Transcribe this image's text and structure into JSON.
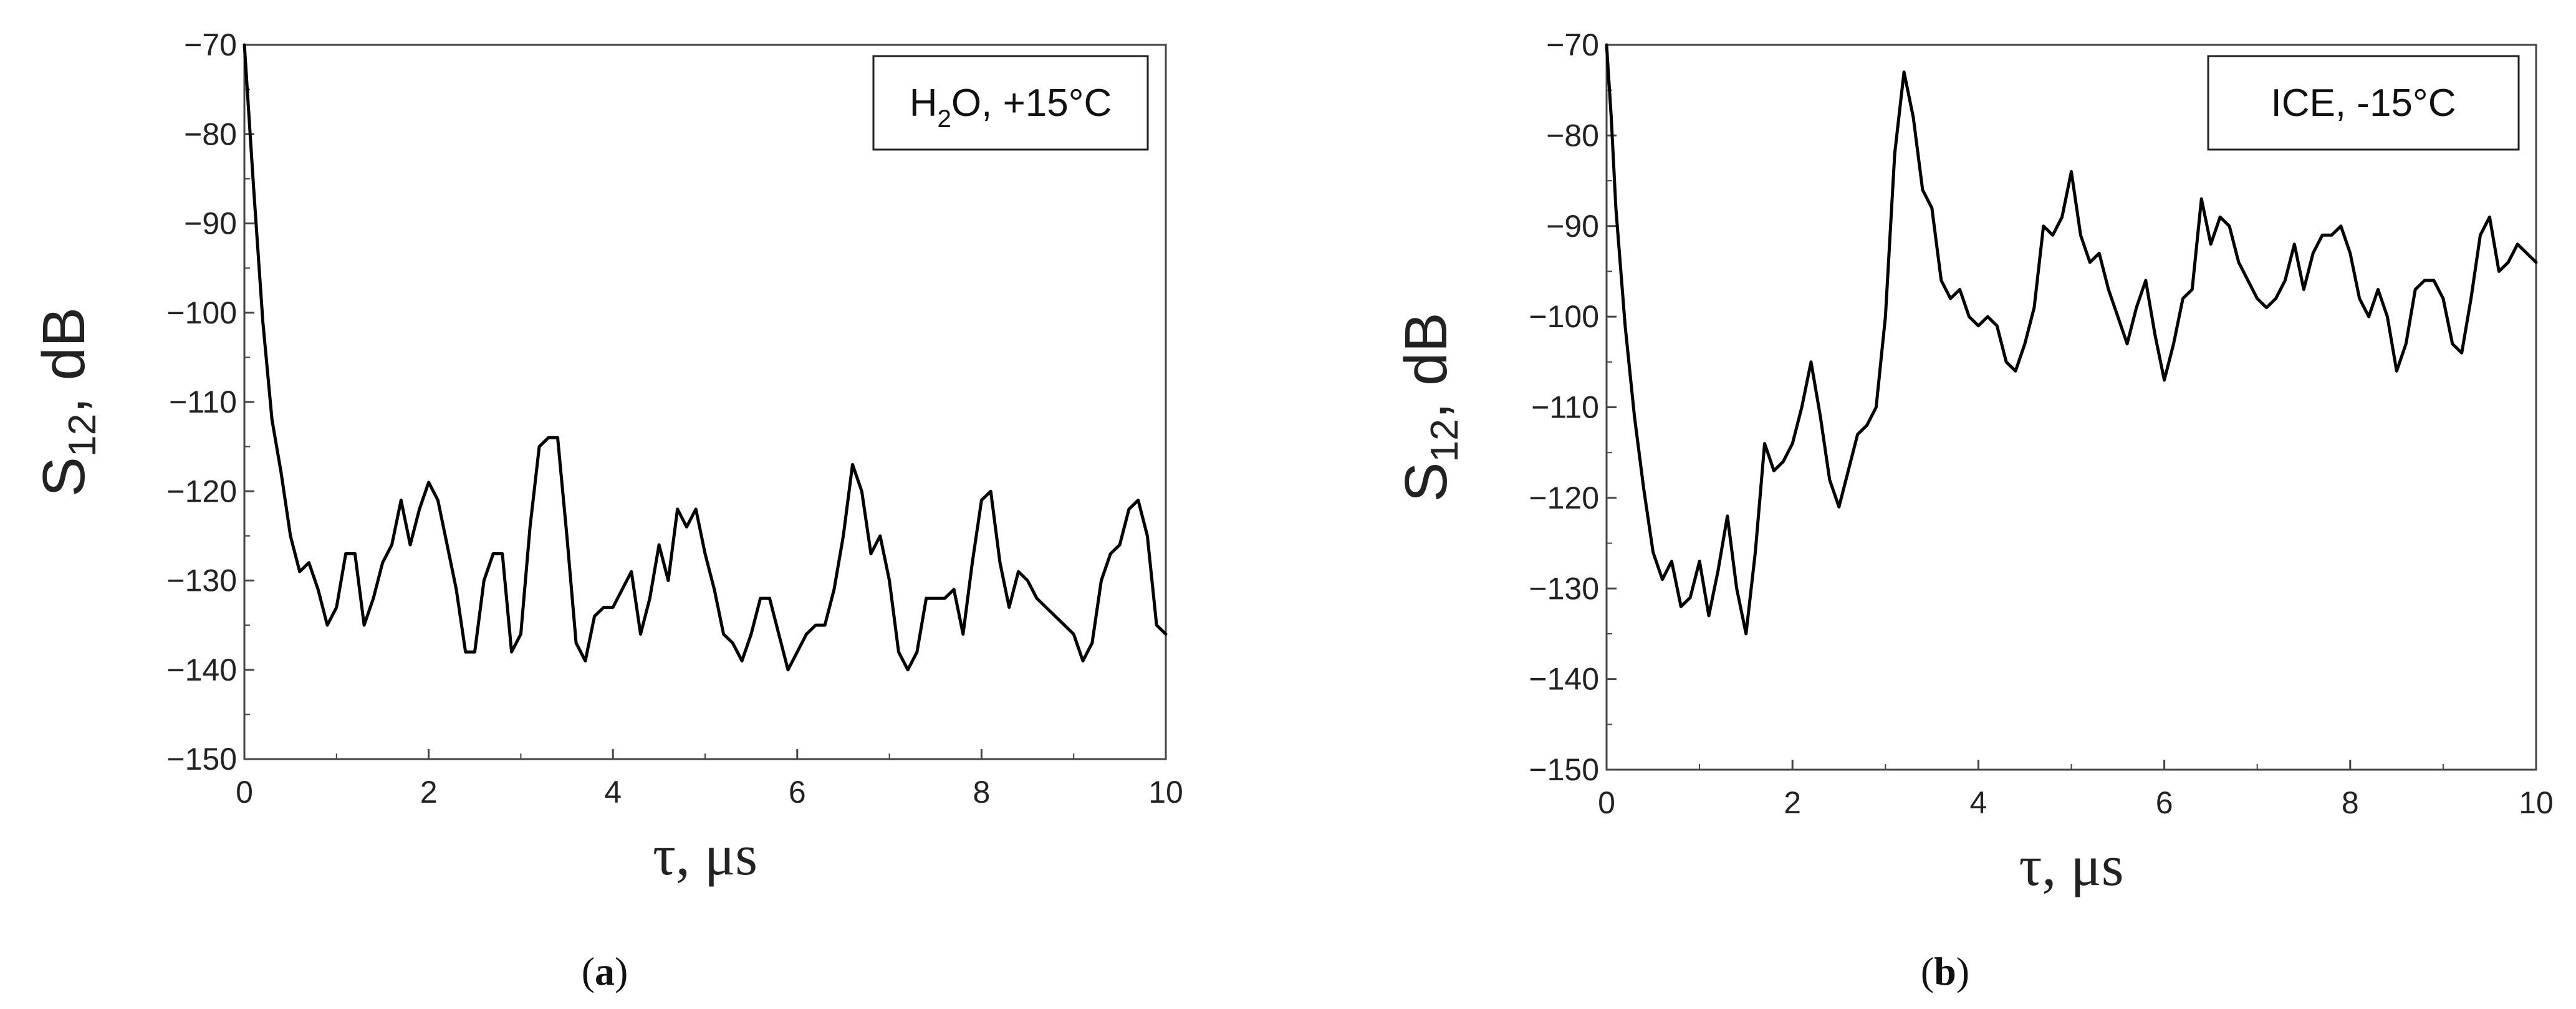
{
  "chart_data": [
    {
      "type": "line",
      "panel_label": "a",
      "legend": {
        "main": "H",
        "sub": "2",
        "rest": "O, +15°C"
      },
      "ylabel": {
        "main": "S",
        "sub": "12",
        "rest": ", dB"
      },
      "xlabel": "τ, μs",
      "xlim": [
        0,
        10
      ],
      "ylim": [
        -150,
        -70
      ],
      "xticks": [
        "0",
        "2",
        "4",
        "6",
        "8",
        "10"
      ],
      "yticks": [
        "−70",
        "−80",
        "−90",
        "−100",
        "−110",
        "−120",
        "−130",
        "−140",
        "−150"
      ],
      "legend_position": "top-right",
      "series": [
        {
          "x": [
            0,
            0.05,
            0.1,
            0.2,
            0.3,
            0.4,
            0.5,
            0.6,
            0.7,
            0.8,
            0.9,
            1.0,
            1.1,
            1.2,
            1.3,
            1.4,
            1.5,
            1.6,
            1.7,
            1.8,
            1.9,
            2.0,
            2.1,
            2.2,
            2.3,
            2.4,
            2.5,
            2.6,
            2.7,
            2.8,
            2.9,
            3.0,
            3.1,
            3.2,
            3.3,
            3.4,
            3.5,
            3.6,
            3.7,
            3.8,
            3.9,
            4.0,
            4.1,
            4.2,
            4.3,
            4.4,
            4.5,
            4.6,
            4.7,
            4.8,
            4.9,
            5.0,
            5.1,
            5.2,
            5.3,
            5.4,
            5.5,
            5.6,
            5.7,
            5.8,
            5.9,
            6.0,
            6.1,
            6.2,
            6.3,
            6.4,
            6.5,
            6.6,
            6.7,
            6.8,
            6.9,
            7.0,
            7.1,
            7.2,
            7.3,
            7.4,
            7.5,
            7.6,
            7.7,
            7.8,
            7.9,
            8.0,
            8.1,
            8.2,
            8.3,
            8.4,
            8.5,
            8.6,
            8.7,
            8.8,
            8.9,
            9.0,
            9.1,
            9.2,
            9.3,
            9.4,
            9.5,
            9.6,
            9.7,
            9.8,
            9.9,
            10.0
          ],
          "y": [
            -70,
            -78,
            -86,
            -101,
            -112,
            -118,
            -125,
            -129,
            -128,
            -131,
            -135,
            -133,
            -127,
            -127,
            -135,
            -132,
            -128,
            -126,
            -121,
            -126,
            -122,
            -119,
            -121,
            -126,
            -131,
            -138,
            -138,
            -130,
            -127,
            -127,
            -138,
            -136,
            -124,
            -115,
            -114,
            -114,
            -125,
            -137,
            -139,
            -134,
            -133,
            -133,
            -131,
            -129,
            -136,
            -132,
            -126,
            -130,
            -122,
            -124,
            -122,
            -127,
            -131,
            -136,
            -137,
            -139,
            -136,
            -132,
            -132,
            -136,
            -140,
            -138,
            -136,
            -135,
            -135,
            -131,
            -125,
            -117,
            -120,
            -127,
            -125,
            -130,
            -138,
            -140,
            -138,
            -132,
            -132,
            -132,
            -131,
            -136,
            -128,
            -121,
            -120,
            -128,
            -133,
            -129,
            -130,
            -132,
            -133,
            -134,
            -135,
            -136,
            -139,
            -137,
            -130,
            -127,
            -126,
            -122,
            -121,
            -125,
            -135,
            -136
          ]
        }
      ]
    },
    {
      "type": "line",
      "panel_label": "b",
      "legend": {
        "main": "ICE, -15°C",
        "sub": "",
        "rest": ""
      },
      "ylabel": {
        "main": "S",
        "sub": "12",
        "rest": ", dB"
      },
      "xlabel": "τ, μs",
      "xlim": [
        0,
        10
      ],
      "ylim": [
        -150,
        -70
      ],
      "xticks": [
        "0",
        "2",
        "4",
        "6",
        "8",
        "10"
      ],
      "yticks": [
        "−70",
        "−80",
        "−90",
        "−100",
        "−110",
        "−120",
        "−130",
        "−140",
        "−150"
      ],
      "legend_position": "top-right",
      "series": [
        {
          "x": [
            0,
            0.05,
            0.1,
            0.2,
            0.3,
            0.4,
            0.5,
            0.6,
            0.7,
            0.8,
            0.9,
            1.0,
            1.1,
            1.2,
            1.3,
            1.4,
            1.5,
            1.6,
            1.7,
            1.8,
            1.9,
            2.0,
            2.1,
            2.2,
            2.3,
            2.4,
            2.5,
            2.6,
            2.7,
            2.8,
            2.9,
            3.0,
            3.1,
            3.2,
            3.3,
            3.4,
            3.5,
            3.6,
            3.7,
            3.8,
            3.9,
            4.0,
            4.1,
            4.2,
            4.3,
            4.4,
            4.5,
            4.6,
            4.7,
            4.8,
            4.9,
            5.0,
            5.1,
            5.2,
            5.3,
            5.4,
            5.5,
            5.6,
            5.7,
            5.8,
            5.9,
            6.0,
            6.1,
            6.2,
            6.3,
            6.4,
            6.5,
            6.6,
            6.7,
            6.8,
            6.9,
            7.0,
            7.1,
            7.2,
            7.3,
            7.4,
            7.5,
            7.6,
            7.7,
            7.8,
            7.9,
            8.0,
            8.1,
            8.2,
            8.3,
            8.4,
            8.5,
            8.6,
            8.7,
            8.8,
            8.9,
            9.0,
            9.1,
            9.2,
            9.3,
            9.4,
            9.5,
            9.6,
            9.7,
            9.8,
            9.9,
            10.0
          ],
          "y": [
            -70,
            -78,
            -88,
            -101,
            -111,
            -119,
            -126,
            -129,
            -127,
            -132,
            -131,
            -127,
            -133,
            -128,
            -122,
            -130,
            -135,
            -126,
            -114,
            -117,
            -116,
            -114,
            -110,
            -105,
            -111,
            -118,
            -121,
            -117,
            -113,
            -112,
            -110,
            -100,
            -82,
            -73,
            -78,
            -86,
            -88,
            -96,
            -98,
            -97,
            -100,
            -101,
            -100,
            -101,
            -105,
            -106,
            -103,
            -99,
            -90,
            -91,
            -89,
            -84,
            -91,
            -94,
            -93,
            -97,
            -100,
            -103,
            -99,
            -96,
            -102,
            -107,
            -103,
            -98,
            -97,
            -87,
            -92,
            -89,
            -90,
            -94,
            -96,
            -98,
            -99,
            -98,
            -96,
            -92,
            -97,
            -93,
            -91,
            -91,
            -90,
            -93,
            -98,
            -100,
            -97,
            -100,
            -106,
            -103,
            -97,
            -96,
            -96,
            -98,
            -103,
            -104,
            -98,
            -91,
            -89,
            -95,
            -94,
            -92,
            -93,
            -94
          ]
        }
      ]
    }
  ]
}
